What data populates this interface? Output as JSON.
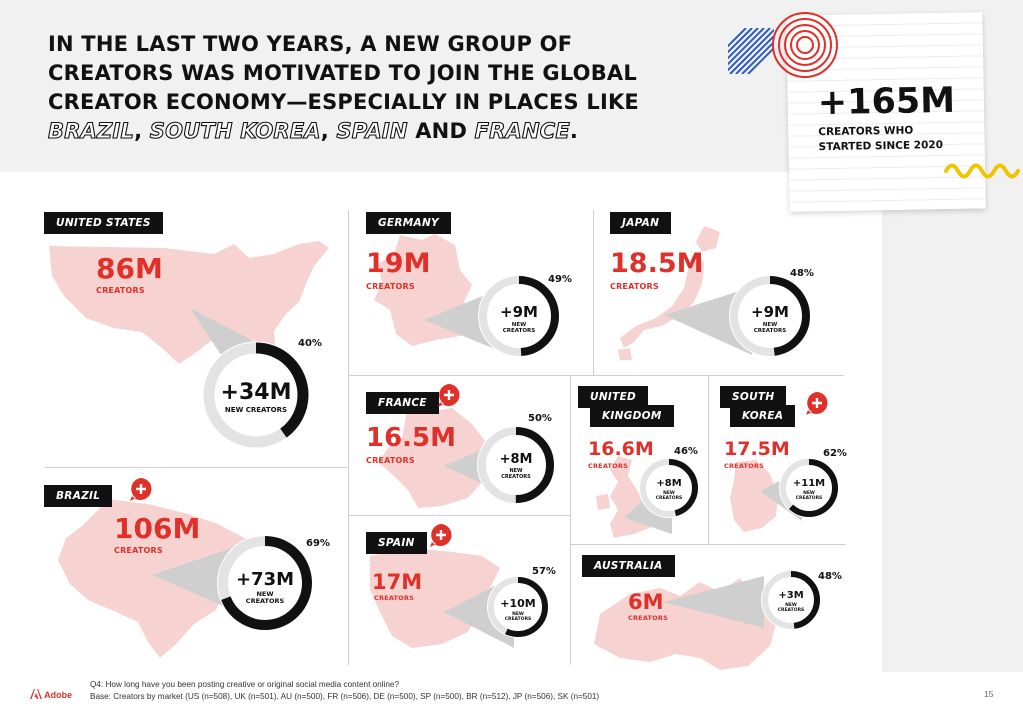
{
  "headline": {
    "line1": "IN THE LAST TWO YEARS, A NEW GROUP OF",
    "line2": "CREATORS WAS MOTIVATED TO JOIN THE GLOBAL",
    "line3": "CREATOR ECONOMY—ESPECIALLY IN PLACES LIKE",
    "brazil": "BRAZIL",
    "comma1": ", ",
    "korea": "SOUTH KOREA",
    "comma2": ", ",
    "spain": "SPAIN",
    "and": " AND ",
    "france": "FRANCE",
    "period": "."
  },
  "callout": {
    "value": "+165M",
    "text": "CREATORS WHO STARTED SINCE 2020"
  },
  "markets": [
    {
      "name": "UNITED STATES",
      "total": "86M",
      "total_label": "CREATORS",
      "new": "+34M",
      "new_label": "NEW CREATORS",
      "pct_label": "40%",
      "pct": 0.4,
      "highlight": false
    },
    {
      "name": "GERMANY",
      "total": "19M",
      "total_label": "CREATORS",
      "new": "+9M",
      "new_label": "NEW CREATORS",
      "pct_label": "49%",
      "pct": 0.49,
      "highlight": false
    },
    {
      "name": "JAPAN",
      "total": "18.5M",
      "total_label": "CREATORS",
      "new": "+9M",
      "new_label": "NEW CREATORS",
      "pct_label": "48%",
      "pct": 0.48,
      "highlight": false
    },
    {
      "name": "BRAZIL",
      "total": "106M",
      "total_label": "CREATORS",
      "new": "+73M",
      "new_label": "NEW CREATORS",
      "pct_label": "69%",
      "pct": 0.69,
      "highlight": true
    },
    {
      "name": "FRANCE",
      "total": "16.5M",
      "total_label": "CREATORS",
      "new": "+8M",
      "new_label": "NEW CREATORS",
      "pct_label": "50%",
      "pct": 0.5,
      "highlight": true
    },
    {
      "name": "UNITED KINGDOM",
      "name_line1": "UNITED",
      "name_line2": "KINGDOM",
      "total": "16.6M",
      "total_label": "CREATORS",
      "new": "+8M",
      "new_label": "NEW CREATORS",
      "pct_label": "46%",
      "pct": 0.46,
      "highlight": false
    },
    {
      "name": "SOUTH KOREA",
      "name_line1": "SOUTH",
      "name_line2": "KOREA",
      "total": "17.5M",
      "total_label": "CREATORS",
      "new": "+11M",
      "new_label": "NEW CREATORS",
      "pct_label": "62%",
      "pct": 0.62,
      "highlight": true
    },
    {
      "name": "SPAIN",
      "total": "17M",
      "total_label": "CREATORS",
      "new": "+10M",
      "new_label": "NEW CREATORS",
      "pct_label": "57%",
      "pct": 0.57,
      "highlight": true
    },
    {
      "name": "AUSTRALIA",
      "total": "6M",
      "total_label": "CREATORS",
      "new": "+3M",
      "new_label": "NEW CREATORS",
      "pct_label": "48%",
      "pct": 0.48,
      "highlight": false
    }
  ],
  "footer": {
    "question": "Q4: How long have you been posting creative or original social media content online?",
    "base": "Base: Creators by market (US (n=508), UK (n=501), AU (n=500), FR (n=506), DE (n=500), SP (n=500), BR (n=512), JP (n=506), SK (n=501)",
    "brand": "Adobe",
    "page": "15"
  },
  "colors": {
    "accent": "#e0302a",
    "map_fill": "#f6d3d1",
    "dark": "#111111",
    "ring_bg": "#e3e3e3"
  }
}
